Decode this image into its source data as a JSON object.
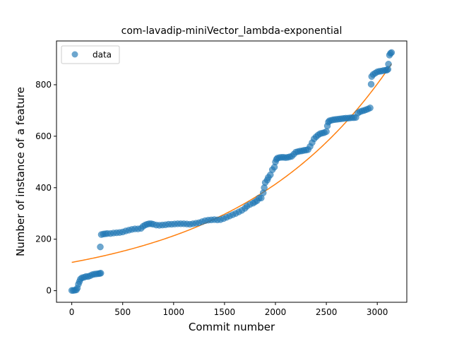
{
  "colors": {
    "scatter": "#1f77b4",
    "fit_line": "#ff7f0e",
    "axes": "#000000",
    "background": "#ffffff"
  },
  "chart_data": {
    "type": "scatter",
    "title": "com-lavadip-miniVector_lambda-exponential",
    "xlabel": "Commit number",
    "ylabel": "Number of instance of a feature",
    "xlim": [
      -150,
      3290
    ],
    "ylim": [
      -45,
      970
    ],
    "x_ticks": [
      0,
      500,
      1000,
      1500,
      2000,
      2500,
      3000
    ],
    "y_ticks": [
      0,
      200,
      400,
      600,
      800
    ],
    "grid": false,
    "legend": {
      "position": "top-left",
      "entries": [
        "data"
      ]
    },
    "series": [
      {
        "name": "data",
        "kind": "scatter",
        "opacity": 0.65,
        "points": [
          [
            0,
            1
          ],
          [
            15,
            1
          ],
          [
            30,
            2
          ],
          [
            45,
            3
          ],
          [
            55,
            10
          ],
          [
            65,
            25
          ],
          [
            75,
            35
          ],
          [
            85,
            45
          ],
          [
            100,
            50
          ],
          [
            120,
            52
          ],
          [
            140,
            55
          ],
          [
            160,
            55
          ],
          [
            180,
            58
          ],
          [
            200,
            62
          ],
          [
            220,
            64
          ],
          [
            240,
            65
          ],
          [
            260,
            66
          ],
          [
            275,
            67
          ],
          [
            285,
            68
          ],
          [
            280,
            170
          ],
          [
            290,
            218
          ],
          [
            310,
            220
          ],
          [
            330,
            221
          ],
          [
            350,
            222
          ],
          [
            380,
            222
          ],
          [
            410,
            224
          ],
          [
            440,
            225
          ],
          [
            470,
            226
          ],
          [
            500,
            228
          ],
          [
            530,
            232
          ],
          [
            560,
            235
          ],
          [
            590,
            238
          ],
          [
            620,
            240
          ],
          [
            650,
            240
          ],
          [
            680,
            242
          ],
          [
            700,
            250
          ],
          [
            720,
            255
          ],
          [
            740,
            258
          ],
          [
            760,
            260
          ],
          [
            780,
            260
          ],
          [
            800,
            258
          ],
          [
            830,
            255
          ],
          [
            860,
            254
          ],
          [
            890,
            255
          ],
          [
            920,
            256
          ],
          [
            950,
            258
          ],
          [
            980,
            258
          ],
          [
            1010,
            259
          ],
          [
            1040,
            260
          ],
          [
            1070,
            260
          ],
          [
            1100,
            260
          ],
          [
            1130,
            259
          ],
          [
            1160,
            258
          ],
          [
            1190,
            260
          ],
          [
            1220,
            262
          ],
          [
            1250,
            264
          ],
          [
            1280,
            268
          ],
          [
            1310,
            272
          ],
          [
            1340,
            274
          ],
          [
            1370,
            275
          ],
          [
            1400,
            276
          ],
          [
            1430,
            275
          ],
          [
            1460,
            276
          ],
          [
            1490,
            280
          ],
          [
            1520,
            285
          ],
          [
            1550,
            290
          ],
          [
            1580,
            295
          ],
          [
            1610,
            300
          ],
          [
            1640,
            306
          ],
          [
            1670,
            312
          ],
          [
            1700,
            320
          ],
          [
            1720,
            328
          ],
          [
            1750,
            335
          ],
          [
            1780,
            340
          ],
          [
            1800,
            345
          ],
          [
            1820,
            350
          ],
          [
            1840,
            360
          ],
          [
            1860,
            360
          ],
          [
            1880,
            380
          ],
          [
            1890,
            400
          ],
          [
            1900,
            420
          ],
          [
            1920,
            430
          ],
          [
            1930,
            440
          ],
          [
            1950,
            450
          ],
          [
            1970,
            470
          ],
          [
            1990,
            480
          ],
          [
            2000,
            500
          ],
          [
            2010,
            510
          ],
          [
            2020,
            515
          ],
          [
            2040,
            517
          ],
          [
            2060,
            518
          ],
          [
            2080,
            518
          ],
          [
            2100,
            517
          ],
          [
            2120,
            518
          ],
          [
            2140,
            520
          ],
          [
            2160,
            522
          ],
          [
            2180,
            530
          ],
          [
            2200,
            538
          ],
          [
            2220,
            540
          ],
          [
            2240,
            542
          ],
          [
            2260,
            543
          ],
          [
            2280,
            545
          ],
          [
            2300,
            546
          ],
          [
            2320,
            548
          ],
          [
            2340,
            560
          ],
          [
            2360,
            575
          ],
          [
            2380,
            590
          ],
          [
            2400,
            598
          ],
          [
            2420,
            605
          ],
          [
            2440,
            610
          ],
          [
            2460,
            612
          ],
          [
            2480,
            614
          ],
          [
            2500,
            618
          ],
          [
            2510,
            640
          ],
          [
            2520,
            655
          ],
          [
            2530,
            660
          ],
          [
            2550,
            662
          ],
          [
            2570,
            664
          ],
          [
            2590,
            665
          ],
          [
            2610,
            666
          ],
          [
            2630,
            667
          ],
          [
            2650,
            668
          ],
          [
            2670,
            669
          ],
          [
            2690,
            670
          ],
          [
            2710,
            670
          ],
          [
            2730,
            671
          ],
          [
            2750,
            672
          ],
          [
            2770,
            672
          ],
          [
            2790,
            673
          ],
          [
            2810,
            690
          ],
          [
            2830,
            695
          ],
          [
            2850,
            698
          ],
          [
            2870,
            700
          ],
          [
            2890,
            703
          ],
          [
            2910,
            706
          ],
          [
            2930,
            710
          ],
          [
            2940,
            802
          ],
          [
            2945,
            832
          ],
          [
            2960,
            840
          ],
          [
            2980,
            845
          ],
          [
            3000,
            850
          ],
          [
            3020,
            852
          ],
          [
            3040,
            853
          ],
          [
            3060,
            855
          ],
          [
            3080,
            856
          ],
          [
            3095,
            857
          ],
          [
            3105,
            860
          ],
          [
            3110,
            880
          ],
          [
            3120,
            915
          ],
          [
            3130,
            922
          ],
          [
            3140,
            925
          ]
        ]
      },
      {
        "name": "",
        "kind": "line",
        "model": "exponential",
        "a": 110,
        "b": 0.0006626,
        "x_range": [
          0,
          3140
        ]
      }
    ]
  }
}
